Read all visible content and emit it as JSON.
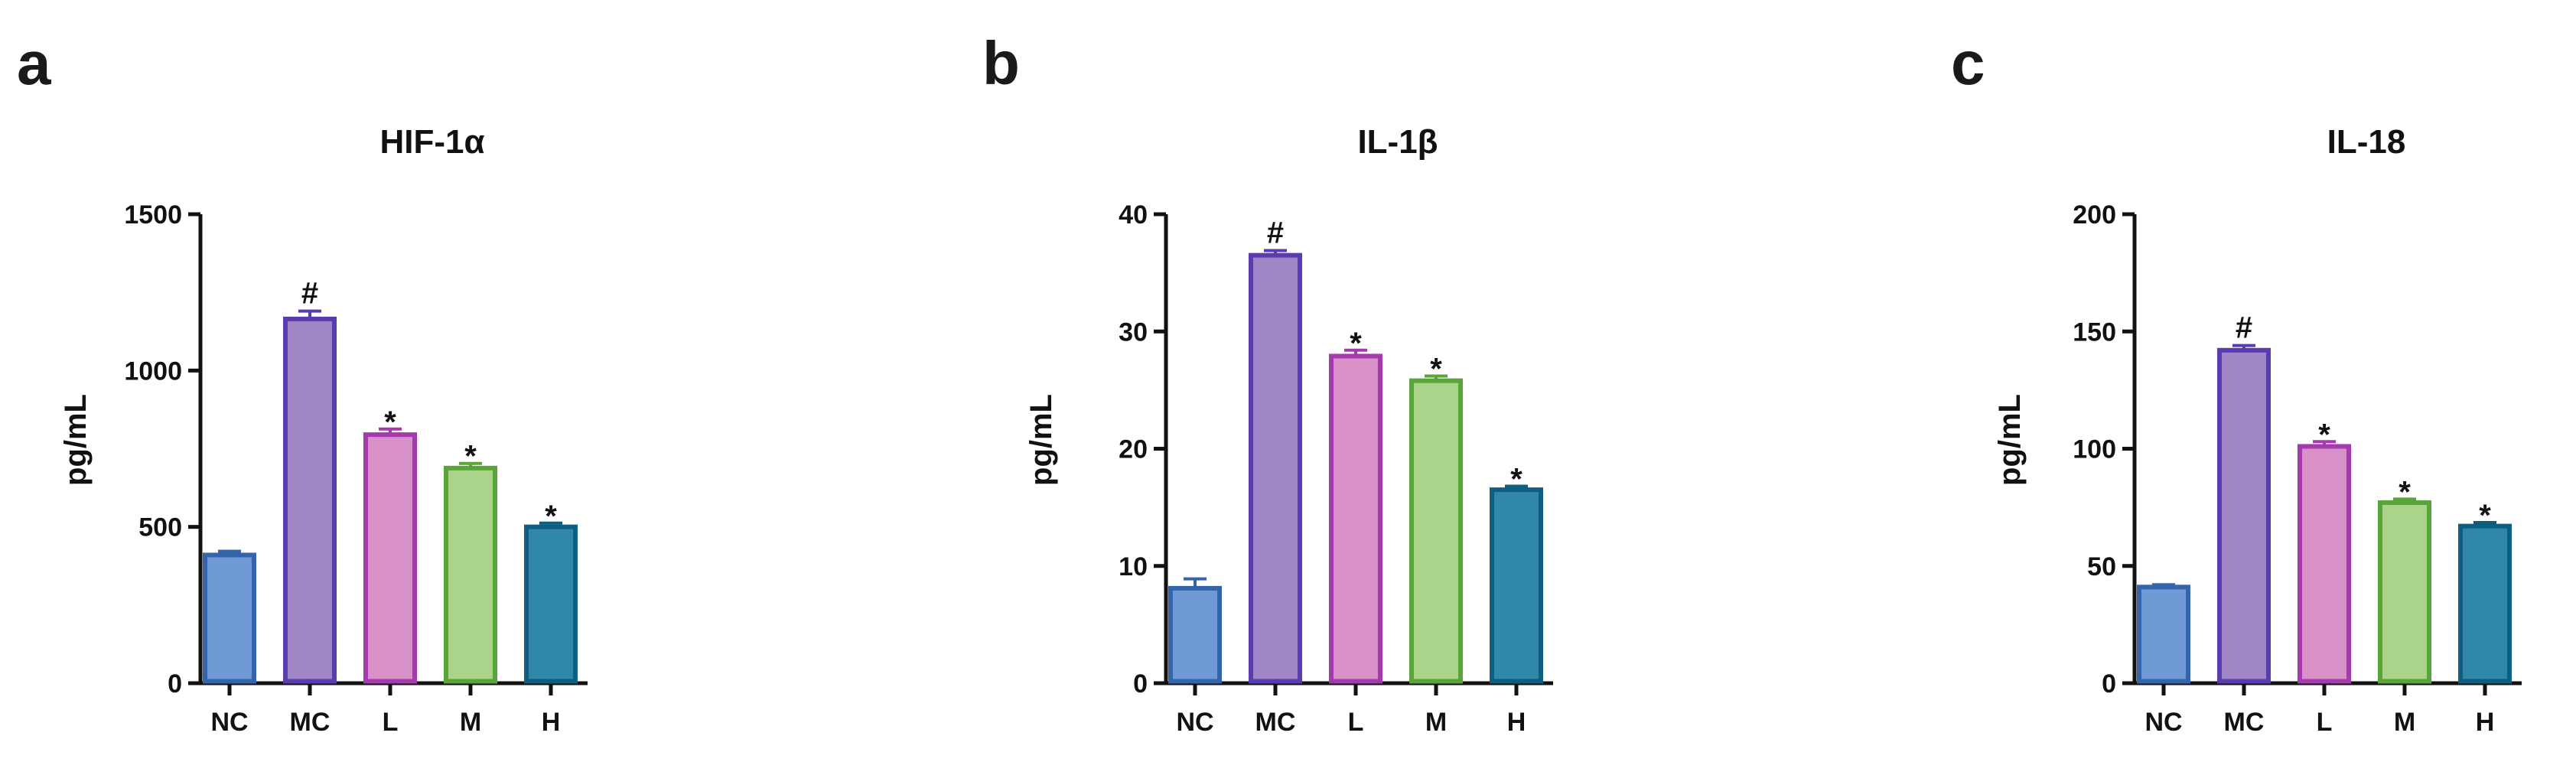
{
  "chart_data": [
    {
      "type": "bar",
      "panel": "a",
      "title": "HIF-1α",
      "ylabel": "pg/mL",
      "xlabel": "",
      "ylim": [
        0,
        1500
      ],
      "yticks": [
        0,
        500,
        1000,
        1500
      ],
      "grid": false,
      "categories": [
        "NC",
        "MC",
        "L",
        "M",
        "H"
      ],
      "values": [
        410,
        1165,
        795,
        688,
        500
      ],
      "errors": [
        12,
        25,
        18,
        15,
        12
      ],
      "significance": [
        "",
        "#",
        "*",
        "*",
        "*"
      ],
      "fill_colors": [
        "#6f9ad5",
        "#9f86c6",
        "#d790c8",
        "#a9d48a",
        "#2f87aa"
      ],
      "edge_colors": [
        "#3464ab",
        "#5a3bb0",
        "#a43aab",
        "#59a53a",
        "#0e5f7f"
      ]
    },
    {
      "type": "bar",
      "panel": "b",
      "title": "IL-1β",
      "ylabel": "pg/mL",
      "xlabel": "",
      "ylim": [
        0,
        40
      ],
      "yticks": [
        0,
        10,
        20,
        30,
        40
      ],
      "grid": false,
      "categories": [
        "NC",
        "MC",
        "L",
        "M",
        "H"
      ],
      "values": [
        8.1,
        36.5,
        27.9,
        25.8,
        16.5
      ],
      "errors": [
        0.8,
        0.4,
        0.5,
        0.4,
        0.3
      ],
      "significance": [
        "",
        "#",
        "*",
        "*",
        "*"
      ],
      "fill_colors": [
        "#6f9ad5",
        "#9f86c6",
        "#d790c8",
        "#a9d48a",
        "#2f87aa"
      ],
      "edge_colors": [
        "#3464ab",
        "#5a3bb0",
        "#a43aab",
        "#59a53a",
        "#0e5f7f"
      ]
    },
    {
      "type": "bar",
      "panel": "c",
      "title": "IL-18",
      "ylabel": "pg/mL",
      "xlabel": "",
      "ylim": [
        0,
        200
      ],
      "yticks": [
        0,
        50,
        100,
        150,
        200
      ],
      "grid": false,
      "categories": [
        "NC",
        "MC",
        "L",
        "M",
        "H"
      ],
      "values": [
        41,
        142,
        101,
        77,
        67
      ],
      "errors": [
        1,
        2,
        2,
        1.5,
        1.5
      ],
      "significance": [
        "",
        "#",
        "*",
        "*",
        "*"
      ],
      "fill_colors": [
        "#6f9ad5",
        "#9f86c6",
        "#d790c8",
        "#a9d48a",
        "#2f87aa"
      ],
      "edge_colors": [
        "#3464ab",
        "#5a3bb0",
        "#a43aab",
        "#59a53a",
        "#0e5f7f"
      ]
    }
  ]
}
